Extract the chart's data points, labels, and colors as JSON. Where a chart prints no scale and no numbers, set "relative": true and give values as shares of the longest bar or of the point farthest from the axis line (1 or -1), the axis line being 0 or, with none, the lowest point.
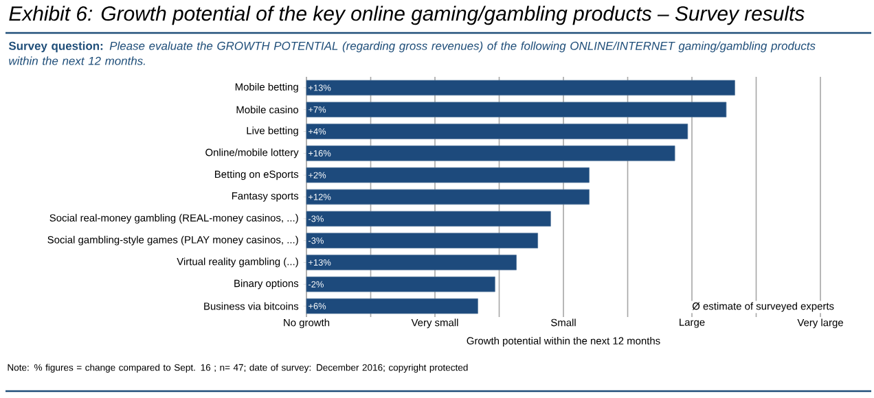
{
  "chart_data": {
    "type": "bar",
    "orientation": "horizontal",
    "relative": true,
    "title": "Exhibit 6: Growth potential of the key online gaming/gambling products – Survey results",
    "subtitle": "**Survey question:** *Please evaluate the GROWTH POTENTIAL (regarding gross revenues) of the following ONLINE/INTERNET gaming/gambling products within the next 12 months.*",
    "categories": [
      "Mobile betting",
      "Mobile casino",
      "Live betting",
      "Online/mobile lottery",
      "Betting on eSports",
      "Fantasy sports",
      "Social real-money gambling  (REAL-money casinos, ...)",
      "Social gambling-style  games (PLAY money casinos, ...)",
      "Virtual reality gambling  (...)",
      "Binary options",
      "Business via bitcoins"
    ],
    "values": [
      1,
      0.98,
      0.89,
      0.86,
      0.66,
      0.66,
      0.57,
      0.54,
      0.49,
      0.44,
      0.4
    ],
    "color": "#1d4a7c",
    "xlabel": "Growth potential within the next 12 months",
    "grid": "x",
    "annotations": [
      "Ø estimate of surveyed experts",
      "Note: % figures = change compared to Sept. 16 ; n= 47; date of survey: December 2016; copyright protected",
      "No growth",
      "Very small",
      "Small",
      "Large",
      "Very large",
      {
        "text": "+13%",
        "y": "Mobile betting"
      },
      {
        "text": "+7%",
        "y": "Mobile casino"
      },
      {
        "text": "+4%",
        "y": "Live betting"
      },
      {
        "text": "+16%",
        "y": "Online/mobile lottery"
      },
      {
        "text": "+2%",
        "y": "Betting on eSports"
      },
      {
        "text": "+12%",
        "y": "Fantasy sports"
      },
      {
        "text": "-3%",
        "y": "Social real-money gambling  (REAL-money casinos, ...)"
      },
      {
        "text": "-3%",
        "y": "Social gambling-style  games (PLAY money casinos, ...)"
      },
      {
        "text": "+13%",
        "y": "Virtual reality gambling  (...)"
      },
      {
        "text": "-2%",
        "y": "Binary options"
      },
      {
        "text": "+6%",
        "y": "Business via bitcoins"
      }
    ]
  }
}
